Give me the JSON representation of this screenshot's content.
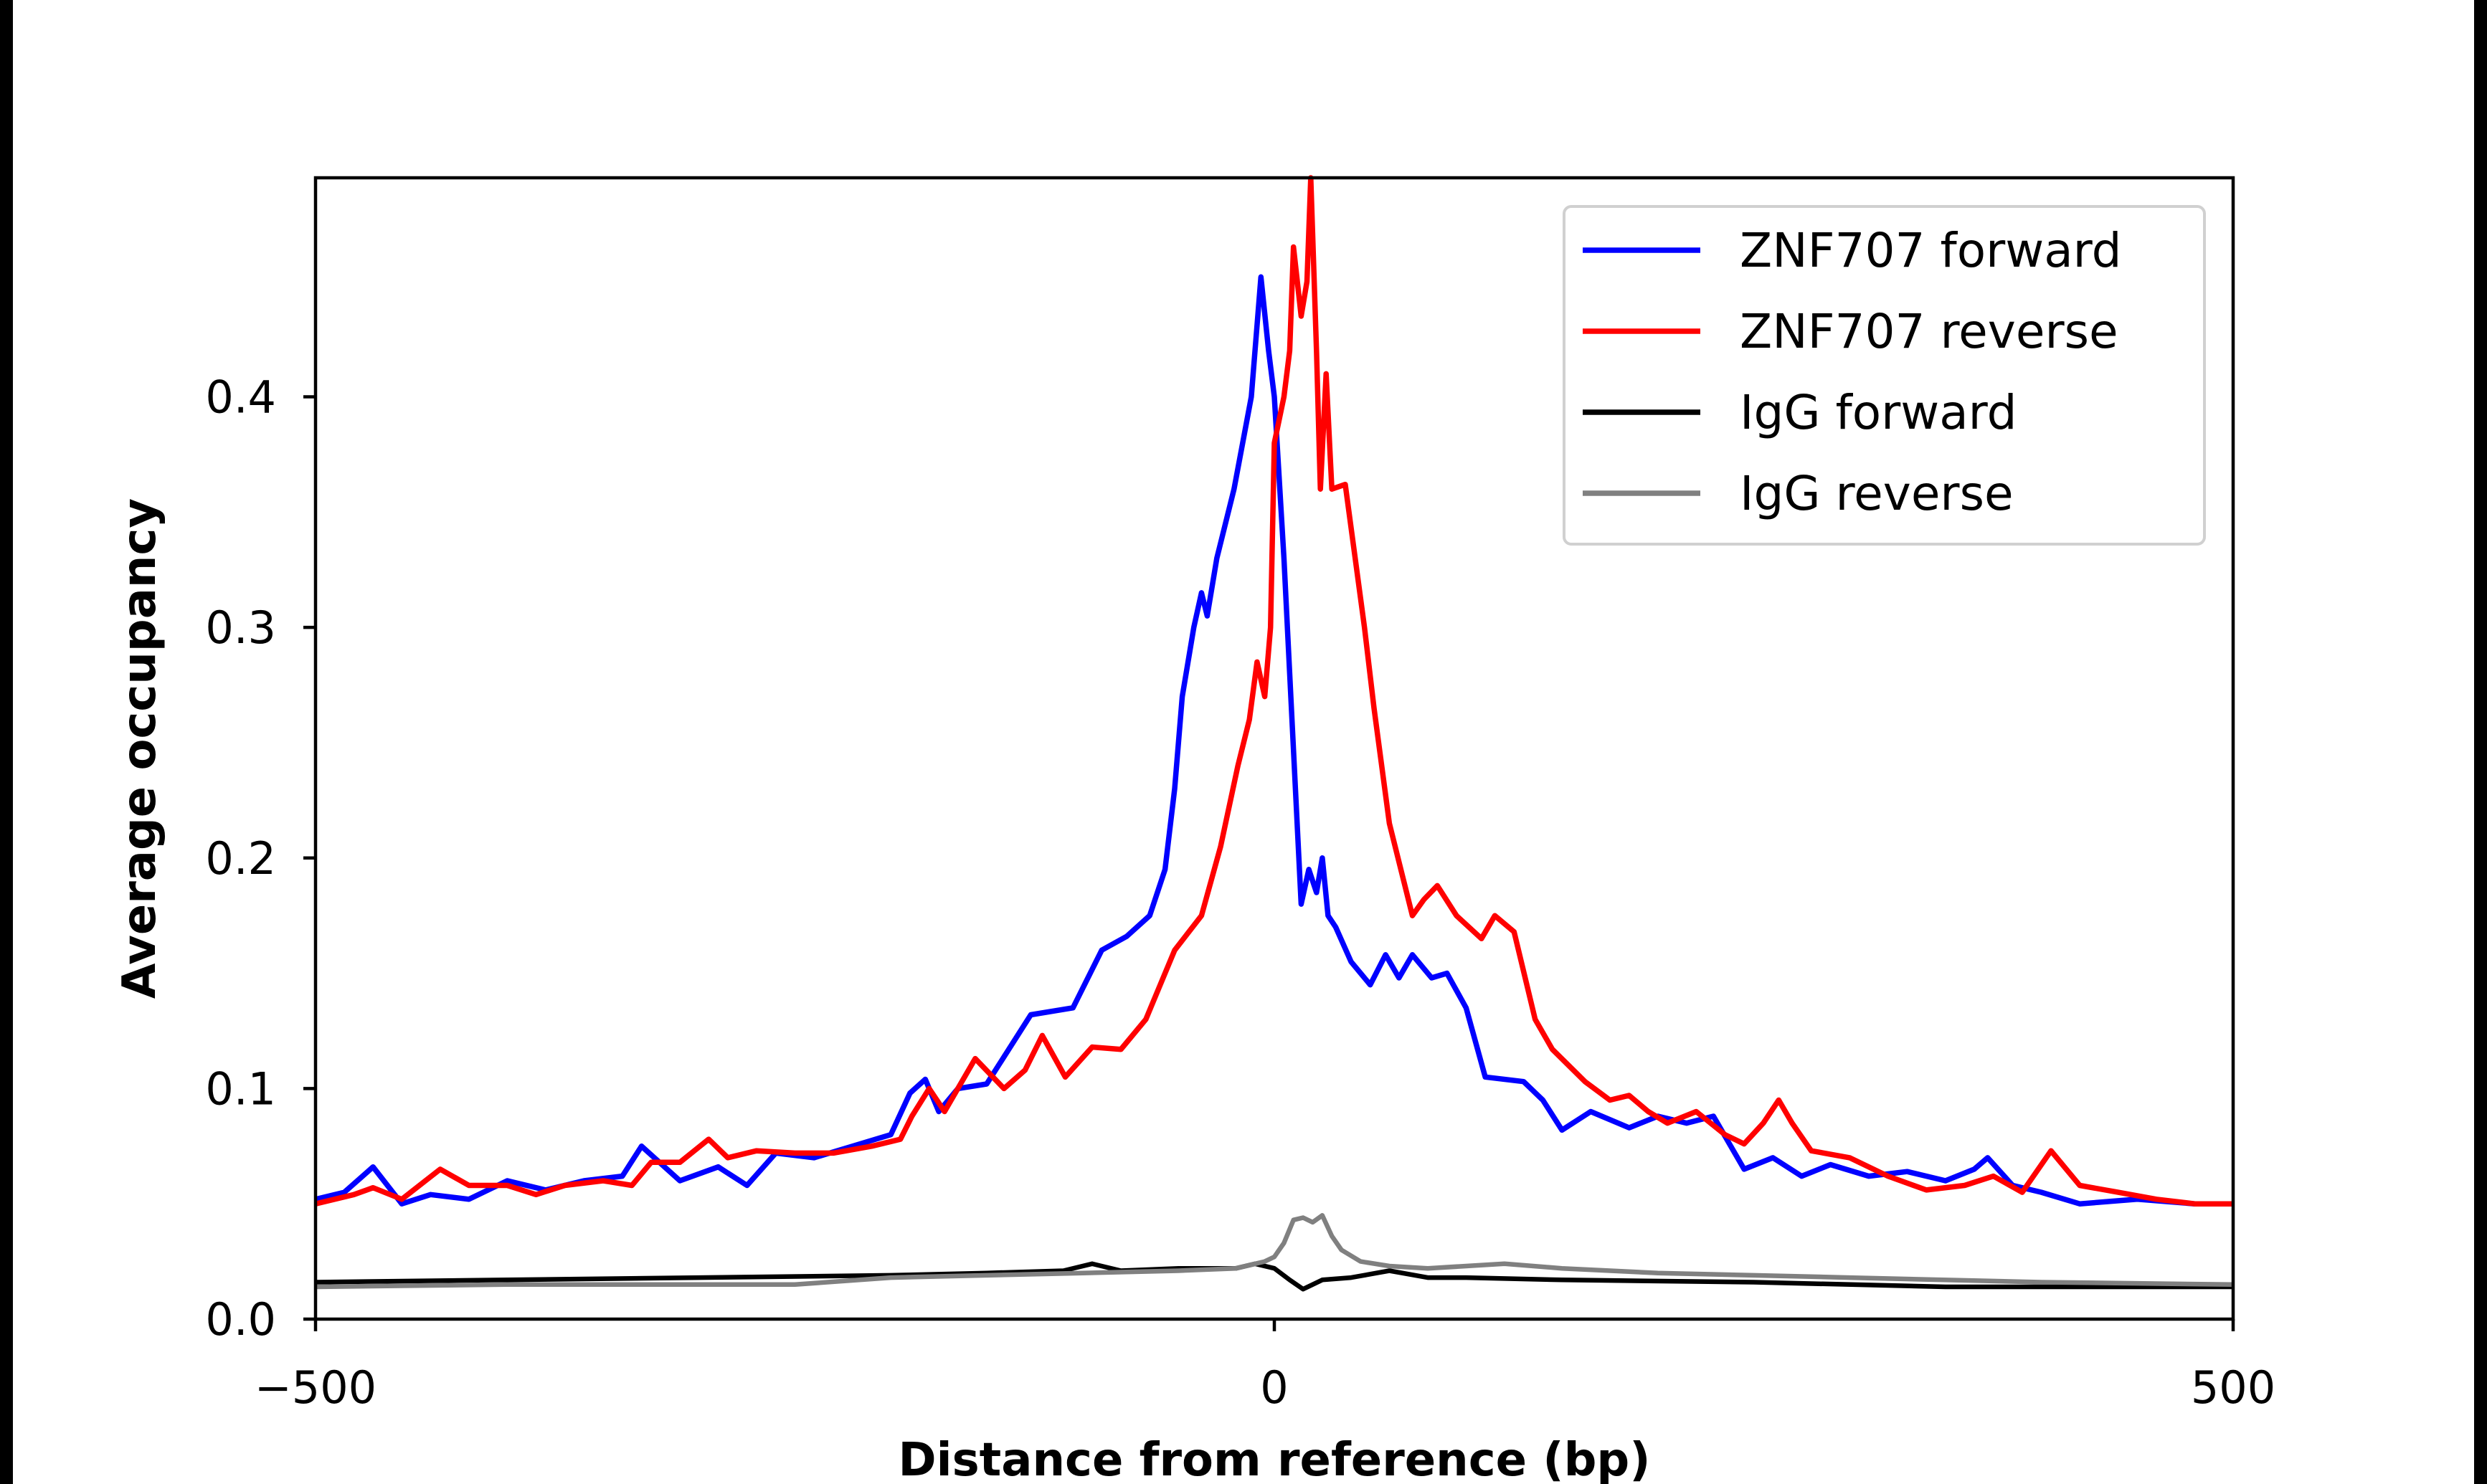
{
  "chart_data": {
    "type": "line",
    "title": "",
    "xlabel": "Distance from reference (bp)",
    "ylabel": "Average occupancy",
    "xlim": [
      -500,
      500
    ],
    "ylim": [
      0,
      0.495
    ],
    "xticks": [
      -500,
      0,
      500
    ],
    "xtick_labels": [
      "−500",
      "0",
      "500"
    ],
    "yticks": [
      0.0,
      0.1,
      0.2,
      0.3,
      0.4
    ],
    "ytick_labels": [
      "0.0",
      "0.1",
      "0.2",
      "0.3",
      "0.4"
    ],
    "grid": false,
    "legend_position": "top-right",
    "series": [
      {
        "name": "ZNF707 forward",
        "color": "#0000ff",
        "x": [
          -500,
          -485,
          -470,
          -455,
          -440,
          -420,
          -400,
          -380,
          -360,
          -340,
          -330,
          -310,
          -290,
          -275,
          -260,
          -240,
          -220,
          -200,
          -190,
          -182,
          -175,
          -165,
          -150,
          -140,
          -127,
          -105,
          -90,
          -77,
          -65,
          -57,
          -52,
          -48,
          -42,
          -38,
          -35,
          -30,
          -21,
          -12,
          -7,
          -3,
          0,
          5,
          8,
          14,
          18,
          22,
          25,
          28,
          32,
          40,
          50,
          58,
          65,
          72,
          82,
          90,
          100,
          110,
          130,
          140,
          150,
          165,
          185,
          200,
          215,
          229,
          245,
          260,
          275,
          290,
          310,
          330,
          350,
          365,
          372,
          385,
          400,
          420,
          450,
          480,
          500
        ],
        "y": [
          0.052,
          0.055,
          0.066,
          0.05,
          0.054,
          0.052,
          0.06,
          0.056,
          0.06,
          0.062,
          0.075,
          0.06,
          0.066,
          0.058,
          0.072,
          0.07,
          0.075,
          0.08,
          0.098,
          0.104,
          0.09,
          0.1,
          0.102,
          0.115,
          0.132,
          0.135,
          0.16,
          0.166,
          0.175,
          0.195,
          0.23,
          0.27,
          0.3,
          0.315,
          0.305,
          0.33,
          0.36,
          0.4,
          0.452,
          0.42,
          0.4,
          0.33,
          0.28,
          0.18,
          0.195,
          0.185,
          0.2,
          0.175,
          0.17,
          0.155,
          0.145,
          0.158,
          0.148,
          0.158,
          0.148,
          0.15,
          0.135,
          0.105,
          0.103,
          0.095,
          0.082,
          0.09,
          0.083,
          0.088,
          0.085,
          0.088,
          0.065,
          0.07,
          0.062,
          0.067,
          0.062,
          0.064,
          0.06,
          0.065,
          0.07,
          0.058,
          0.055,
          0.05,
          0.052,
          0.05,
          0.05
        ]
      },
      {
        "name": "ZNF707 reverse",
        "color": "#ff0000",
        "x": [
          -500,
          -480,
          -470,
          -455,
          -435,
          -420,
          -400,
          -385,
          -370,
          -350,
          -335,
          -325,
          -310,
          -295,
          -285,
          -270,
          -250,
          -230,
          -210,
          -195,
          -189,
          -180,
          -172,
          -156,
          -141,
          -130,
          -121,
          -109,
          -95,
          -80,
          -67,
          -52,
          -38,
          -28,
          -19,
          -13,
          -9,
          -5,
          -2,
          0,
          5,
          8,
          10,
          14,
          17,
          19,
          22,
          24,
          27,
          30,
          37,
          47,
          52,
          60,
          72,
          78,
          85,
          95,
          108,
          115,
          125,
          136,
          145,
          162,
          175,
          185,
          195,
          205,
          220,
          235,
          245,
          255,
          263,
          270,
          280,
          300,
          320,
          340,
          360,
          375,
          390,
          405,
          420,
          440,
          460,
          480,
          500
        ],
        "y": [
          0.05,
          0.054,
          0.057,
          0.052,
          0.065,
          0.058,
          0.058,
          0.054,
          0.058,
          0.06,
          0.058,
          0.068,
          0.068,
          0.078,
          0.07,
          0.073,
          0.072,
          0.072,
          0.075,
          0.078,
          0.088,
          0.1,
          0.09,
          0.113,
          0.1,
          0.108,
          0.123,
          0.105,
          0.118,
          0.117,
          0.13,
          0.16,
          0.175,
          0.205,
          0.24,
          0.26,
          0.285,
          0.27,
          0.3,
          0.38,
          0.4,
          0.42,
          0.465,
          0.435,
          0.45,
          0.495,
          0.42,
          0.36,
          0.41,
          0.36,
          0.362,
          0.3,
          0.265,
          0.215,
          0.175,
          0.182,
          0.188,
          0.175,
          0.165,
          0.175,
          0.168,
          0.13,
          0.117,
          0.103,
          0.095,
          0.097,
          0.09,
          0.085,
          0.09,
          0.08,
          0.076,
          0.085,
          0.095,
          0.085,
          0.073,
          0.07,
          0.062,
          0.056,
          0.058,
          0.062,
          0.055,
          0.073,
          0.058,
          0.055,
          0.052,
          0.05,
          0.05
        ]
      },
      {
        "name": "IgG forward",
        "color": "#000000",
        "x": [
          -500,
          -400,
          -300,
          -200,
          -150,
          -110,
          -95,
          -80,
          -50,
          -20,
          -10,
          0,
          8,
          15,
          25,
          40,
          60,
          80,
          100,
          150,
          250,
          350,
          450,
          500
        ],
        "y": [
          0.016,
          0.017,
          0.018,
          0.019,
          0.02,
          0.021,
          0.024,
          0.021,
          0.022,
          0.022,
          0.024,
          0.022,
          0.017,
          0.013,
          0.017,
          0.018,
          0.021,
          0.018,
          0.018,
          0.017,
          0.016,
          0.014,
          0.014,
          0.014
        ]
      },
      {
        "name": "IgG reverse",
        "color": "#808080",
        "x": [
          -500,
          -400,
          -300,
          -250,
          -200,
          -150,
          -100,
          -50,
          -20,
          -5,
          0,
          5,
          10,
          15,
          20,
          25,
          30,
          35,
          45,
          60,
          80,
          100,
          120,
          150,
          200,
          250,
          300,
          400,
          500
        ],
        "y": [
          0.014,
          0.015,
          0.015,
          0.015,
          0.018,
          0.019,
          0.02,
          0.021,
          0.022,
          0.025,
          0.027,
          0.033,
          0.043,
          0.044,
          0.042,
          0.045,
          0.036,
          0.03,
          0.025,
          0.023,
          0.022,
          0.023,
          0.024,
          0.022,
          0.02,
          0.019,
          0.018,
          0.016,
          0.015
        ]
      }
    ]
  }
}
